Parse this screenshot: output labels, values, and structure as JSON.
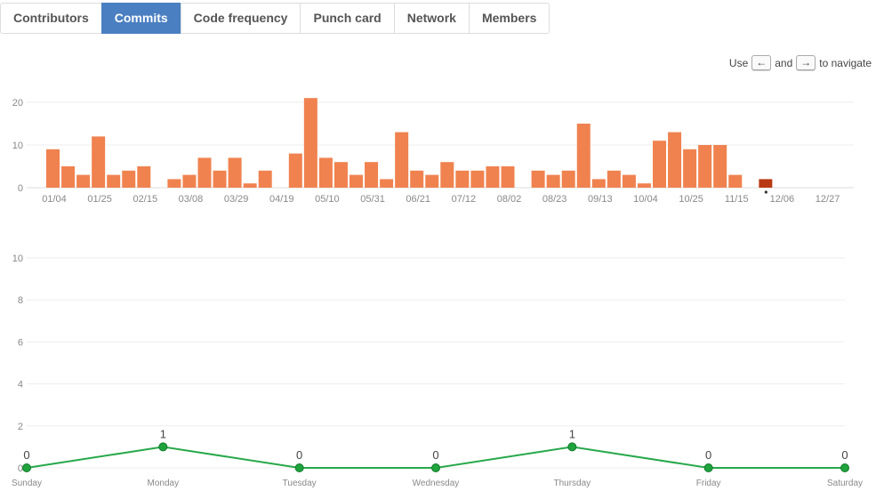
{
  "tabs": [
    {
      "label": "Contributors",
      "active": false
    },
    {
      "label": "Commits",
      "active": true
    },
    {
      "label": "Code frequency",
      "active": false
    },
    {
      "label": "Punch card",
      "active": false
    },
    {
      "label": "Network",
      "active": false
    },
    {
      "label": "Members",
      "active": false
    }
  ],
  "nav_hint": {
    "prefix": "Use",
    "left_key": "←",
    "middle": "and",
    "right_key": "→",
    "suffix": "to navigate"
  },
  "colors": {
    "accent": "#4a7fc1",
    "bar": "#f0824f",
    "bar_selected": "#b83a14",
    "line": "#27a84a",
    "point": "#1fa33c"
  },
  "chart_data": [
    {
      "type": "bar",
      "title": "",
      "xlabel": "",
      "ylabel": "",
      "ylim": [
        0,
        22
      ],
      "yticks": [
        0,
        10,
        20
      ],
      "grid": true,
      "x_tick_labels": [
        "01/04",
        "01/25",
        "02/15",
        "03/08",
        "03/29",
        "04/19",
        "05/10",
        "05/31",
        "06/21",
        "07/12",
        "08/02",
        "08/23",
        "09/13",
        "10/04",
        "10/25",
        "11/15",
        "12/06",
        "12/27"
      ],
      "values": [
        9,
        5,
        3,
        12,
        3,
        4,
        5,
        0,
        2,
        3,
        7,
        4,
        7,
        1,
        4,
        0,
        8,
        21,
        7,
        6,
        3,
        6,
        2,
        13,
        4,
        3,
        6,
        4,
        4,
        5,
        5,
        0,
        4,
        3,
        4,
        15,
        2,
        4,
        3,
        1,
        11,
        13,
        9,
        10,
        10,
        3,
        0,
        2,
        0,
        0,
        0,
        0
      ],
      "selected_index": 47
    },
    {
      "type": "line",
      "title": "",
      "xlabel": "",
      "ylabel": "",
      "ylim": [
        0,
        10
      ],
      "yticks": [
        0,
        2,
        4,
        6,
        8,
        10
      ],
      "grid": true,
      "categories": [
        "Sunday",
        "Monday",
        "Tuesday",
        "Wednesday",
        "Thursday",
        "Friday",
        "Saturday"
      ],
      "values": [
        0,
        1,
        0,
        0,
        1,
        0,
        0
      ]
    }
  ]
}
